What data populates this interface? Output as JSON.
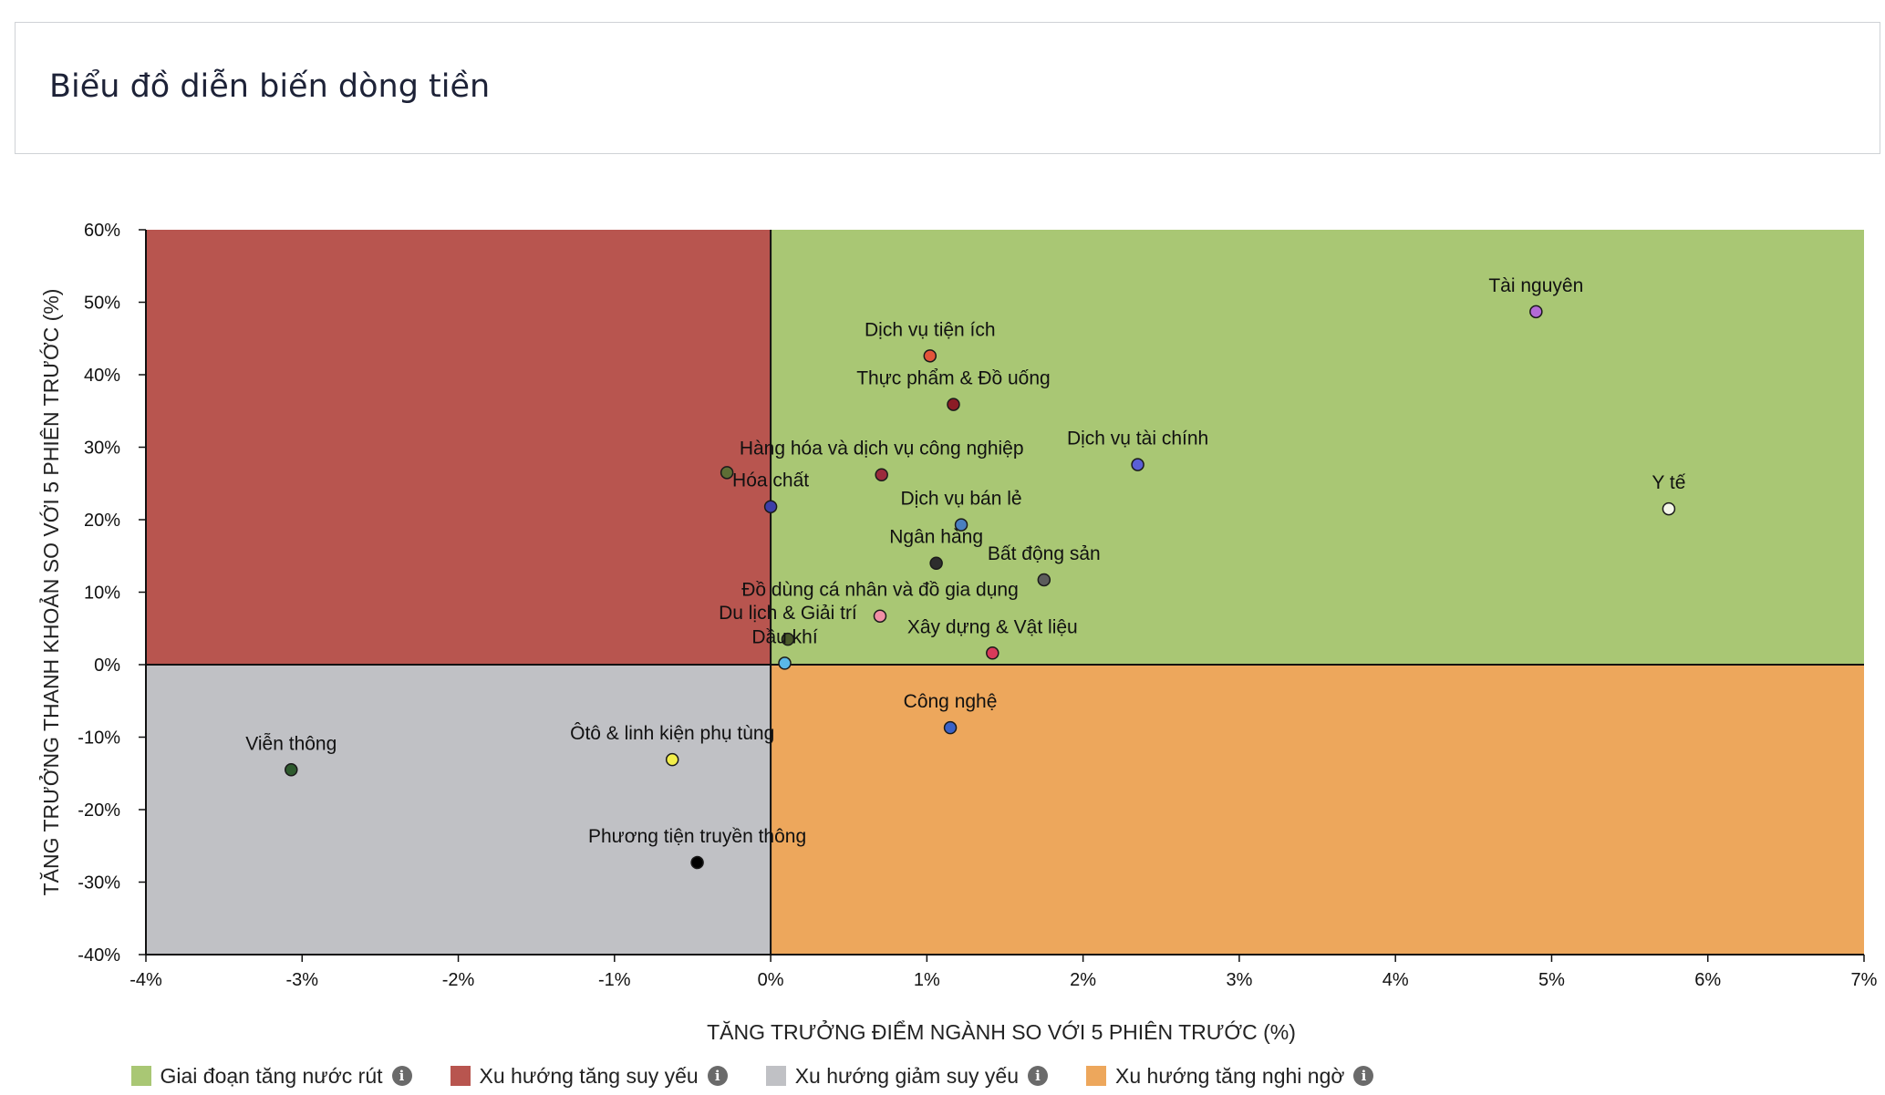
{
  "title": "Biểu đồ diễn biến dòng tiền",
  "chart_data": {
    "type": "scatter",
    "title": "Biểu đồ diễn biến dòng tiền",
    "xlabel": "TĂNG TRƯỞNG ĐIỂM NGÀNH SO VỚI 5 PHIÊN TRƯỚC (%)",
    "ylabel": "TĂNG TRƯỞNG THANH KHOẢN SO VỚI 5 PHIÊN TRƯỚC (%)",
    "xlim": [
      -4,
      7
    ],
    "ylim": [
      -40,
      60
    ],
    "xticks": [
      -4,
      -3,
      -2,
      -1,
      0,
      1,
      2,
      3,
      4,
      5,
      6,
      7
    ],
    "yticks": [
      -40,
      -30,
      -20,
      -10,
      0,
      10,
      20,
      30,
      40,
      50,
      60
    ],
    "tick_suffix": "%",
    "grid": false,
    "legend_position": "bottom",
    "quadrants": [
      {
        "label": "Giai đoạn tăng nước rút",
        "color": "#a9c774",
        "region": "x>0,y>0"
      },
      {
        "label": "Xu hướng tăng suy yếu",
        "color": "#b8554f",
        "region": "x<0,y>0"
      },
      {
        "label": "Xu hướng giảm suy yếu",
        "color": "#c0c1c5",
        "region": "x<0,y<0"
      },
      {
        "label": "Xu hướng tăng nghi ngờ",
        "color": "#eda75c",
        "region": "x>0,y<0"
      }
    ],
    "points": [
      {
        "label": "Tài nguyên",
        "x": 4.9,
        "y": 48.7,
        "color": "#b36ad6"
      },
      {
        "label": "Y tế",
        "x": 5.75,
        "y": 21.5,
        "color": "#f4f7ea"
      },
      {
        "label": "Dịch vụ tiện ích",
        "x": 1.02,
        "y": 42.6,
        "color": "#e3543a"
      },
      {
        "label": "Thực phẩm & Đồ uống",
        "x": 1.17,
        "y": 35.9,
        "color": "#8c1c26"
      },
      {
        "label": "Dịch vụ tài chính",
        "x": 2.35,
        "y": 27.6,
        "color": "#5a5fd6"
      },
      {
        "label": "Hàng hóa và dịch vụ công nghiệp",
        "x": 0.71,
        "y": 26.2,
        "color": "#9b2a3c"
      },
      {
        "label": "",
        "x": -0.28,
        "y": 26.5,
        "color": "#5e6e35"
      },
      {
        "label": "Hóa chất",
        "x": 0.0,
        "y": 21.8,
        "color": "#3d3fa8"
      },
      {
        "label": "Dịch vụ bán lẻ",
        "x": 1.22,
        "y": 19.3,
        "color": "#4a7fbf"
      },
      {
        "label": "Ngân hàng",
        "x": 1.06,
        "y": 14.0,
        "color": "#2d2d2d"
      },
      {
        "label": "Bất động sản",
        "x": 1.75,
        "y": 11.7,
        "color": "#5c5c5c"
      },
      {
        "label": "Đồ dùng cá nhân và đồ gia dụng",
        "x": 0.7,
        "y": 6.7,
        "color": "#f08fa5"
      },
      {
        "label": "Du lịch & Giải trí",
        "x": 0.11,
        "y": 3.5,
        "color": "#4a5a2a"
      },
      {
        "label": "Dầu khí",
        "x": 0.09,
        "y": 0.2,
        "color": "#5ab8e8"
      },
      {
        "label": "Xây dựng & Vật liệu",
        "x": 1.42,
        "y": 1.6,
        "color": "#d83a5a"
      },
      {
        "label": "Công nghệ",
        "x": 1.15,
        "y": -8.7,
        "color": "#3a62c8"
      },
      {
        "label": "Viễn thông",
        "x": -3.07,
        "y": -14.5,
        "color": "#2e5a2e"
      },
      {
        "label": "Ôtô & linh kiện phụ tùng",
        "x": -0.63,
        "y": -13.1,
        "color": "#f2ee4a"
      },
      {
        "label": "Phương tiện truyền thông",
        "x": -0.47,
        "y": -27.3,
        "color": "#000000"
      }
    ]
  }
}
